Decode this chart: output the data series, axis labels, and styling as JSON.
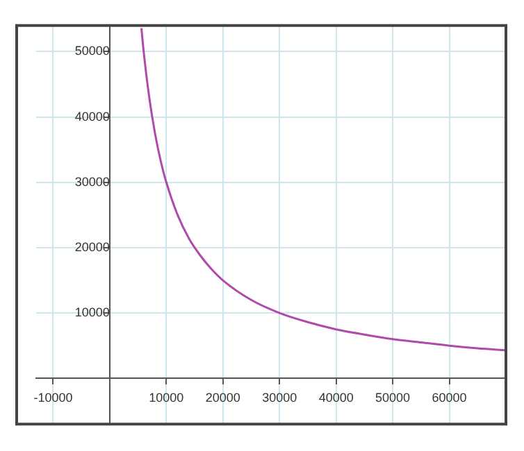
{
  "chart_data": {
    "type": "line",
    "x": [
      5600,
      6000,
      7000,
      8000,
      9000,
      10000,
      12000,
      14000,
      16000,
      18000,
      20000,
      25000,
      30000,
      35000,
      40000,
      45000,
      50000,
      55000,
      60000,
      65000,
      70000
    ],
    "series": [
      {
        "color": "#b04aa8",
        "values": [
          53600,
          50000,
          42900,
          37500,
          33300,
          30000,
          25000,
          21400,
          18800,
          16700,
          15000,
          12000,
          10000,
          8600,
          7500,
          6700,
          6000,
          5500,
          5000,
          4600,
          4300
        ]
      }
    ],
    "xlim": [
      -13000,
      70000
    ],
    "ylim": [
      -7000,
      54000
    ],
    "xticks": [
      -10000,
      10000,
      20000,
      30000,
      40000,
      50000,
      60000
    ],
    "yticks": [
      10000,
      20000,
      30000,
      40000,
      50000
    ],
    "grid": true,
    "marker": "none",
    "line_style": "solid"
  }
}
